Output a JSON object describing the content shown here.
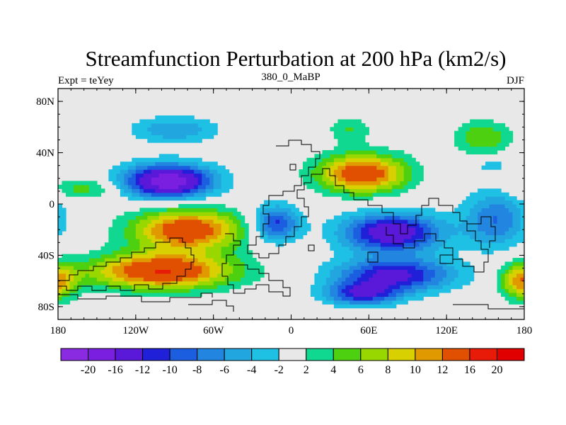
{
  "chart_data": {
    "type": "heatmap",
    "title": "Streamfunction Perturbation at 200 hPa (km2/s)",
    "subtitle_center": "380_0_MaBP",
    "subtitle_left": "Expt = teYey",
    "subtitle_right": "DJF",
    "xlabel": "",
    "ylabel": "",
    "xlim": [
      -180,
      180
    ],
    "ylim": [
      -90,
      90
    ],
    "x_ticks": [
      {
        "value": -180,
        "label": "180"
      },
      {
        "value": -120,
        "label": "120W"
      },
      {
        "value": -60,
        "label": "60W"
      },
      {
        "value": 0,
        "label": "0"
      },
      {
        "value": 60,
        "label": "60E"
      },
      {
        "value": 120,
        "label": "120E"
      },
      {
        "value": 180,
        "label": "180"
      }
    ],
    "y_ticks": [
      {
        "value": 80,
        "label": "80N"
      },
      {
        "value": 40,
        "label": "40N"
      },
      {
        "value": 0,
        "label": "0"
      },
      {
        "value": -40,
        "label": "40S"
      },
      {
        "value": -80,
        "label": "80S"
      }
    ],
    "colorbar": {
      "boundaries": [
        -20,
        -16,
        -12,
        -10,
        -8,
        -6,
        -4,
        -2,
        2,
        4,
        6,
        8,
        10,
        12,
        16,
        20
      ],
      "labels": [
        "-20",
        "-16",
        "-12",
        "-10",
        "-8",
        "-6",
        "-4",
        "-2",
        "2",
        "4",
        "6",
        "8",
        "10",
        "12",
        "16",
        "20"
      ],
      "colors": [
        "#8a2be2",
        "#7a1ee0",
        "#5a18d8",
        "#2020d8",
        "#1c5ee0",
        "#2286e0",
        "#22a6e0",
        "#1ec0e4",
        "#e8e8e8",
        "#10d890",
        "#4cd010",
        "#98d800",
        "#d8d000",
        "#e09a00",
        "#e05000",
        "#e81a08",
        "#e00000"
      ]
    },
    "anomalies": [
      {
        "lon": -95,
        "lat": 18,
        "peak": -19,
        "slon": 34,
        "slat": 13
      },
      {
        "lon": -90,
        "lat": 58,
        "peak": -6,
        "slon": 32,
        "slat": 10
      },
      {
        "lon": -80,
        "lat": -20,
        "peak": 15,
        "slon": 42,
        "slat": 16
      },
      {
        "lon": -100,
        "lat": -52,
        "peak": 16,
        "slon": 55,
        "slat": 14
      },
      {
        "lon": -12,
        "lat": -15,
        "peak": -11,
        "slon": 18,
        "slat": 14
      },
      {
        "lon": 55,
        "lat": 24,
        "peak": 15,
        "slon": 34,
        "slat": 15
      },
      {
        "lon": 78,
        "lat": -22,
        "peak": -15,
        "slon": 38,
        "slat": 15
      },
      {
        "lon": 80,
        "lat": -55,
        "peak": -13,
        "slon": 45,
        "slat": 13
      },
      {
        "lon": 55,
        "lat": -70,
        "peak": -11,
        "slon": 28,
        "slat": 9
      },
      {
        "lon": 45,
        "lat": 58,
        "peak": 4,
        "slon": 16,
        "slat": 10
      },
      {
        "lon": 148,
        "lat": 52,
        "peak": 6,
        "slon": 22,
        "slat": 13
      },
      {
        "lon": 155,
        "lat": 30,
        "peak": -3,
        "slon": 12,
        "slat": 5
      },
      {
        "lon": 158,
        "lat": -12,
        "peak": -8,
        "slon": 24,
        "slat": 22
      },
      {
        "lon": 178,
        "lat": -60,
        "peak": 11,
        "slon": 16,
        "slat": 14
      },
      {
        "lon": -160,
        "lat": 12,
        "peak": 5,
        "slon": 26,
        "slat": 8
      }
    ]
  }
}
